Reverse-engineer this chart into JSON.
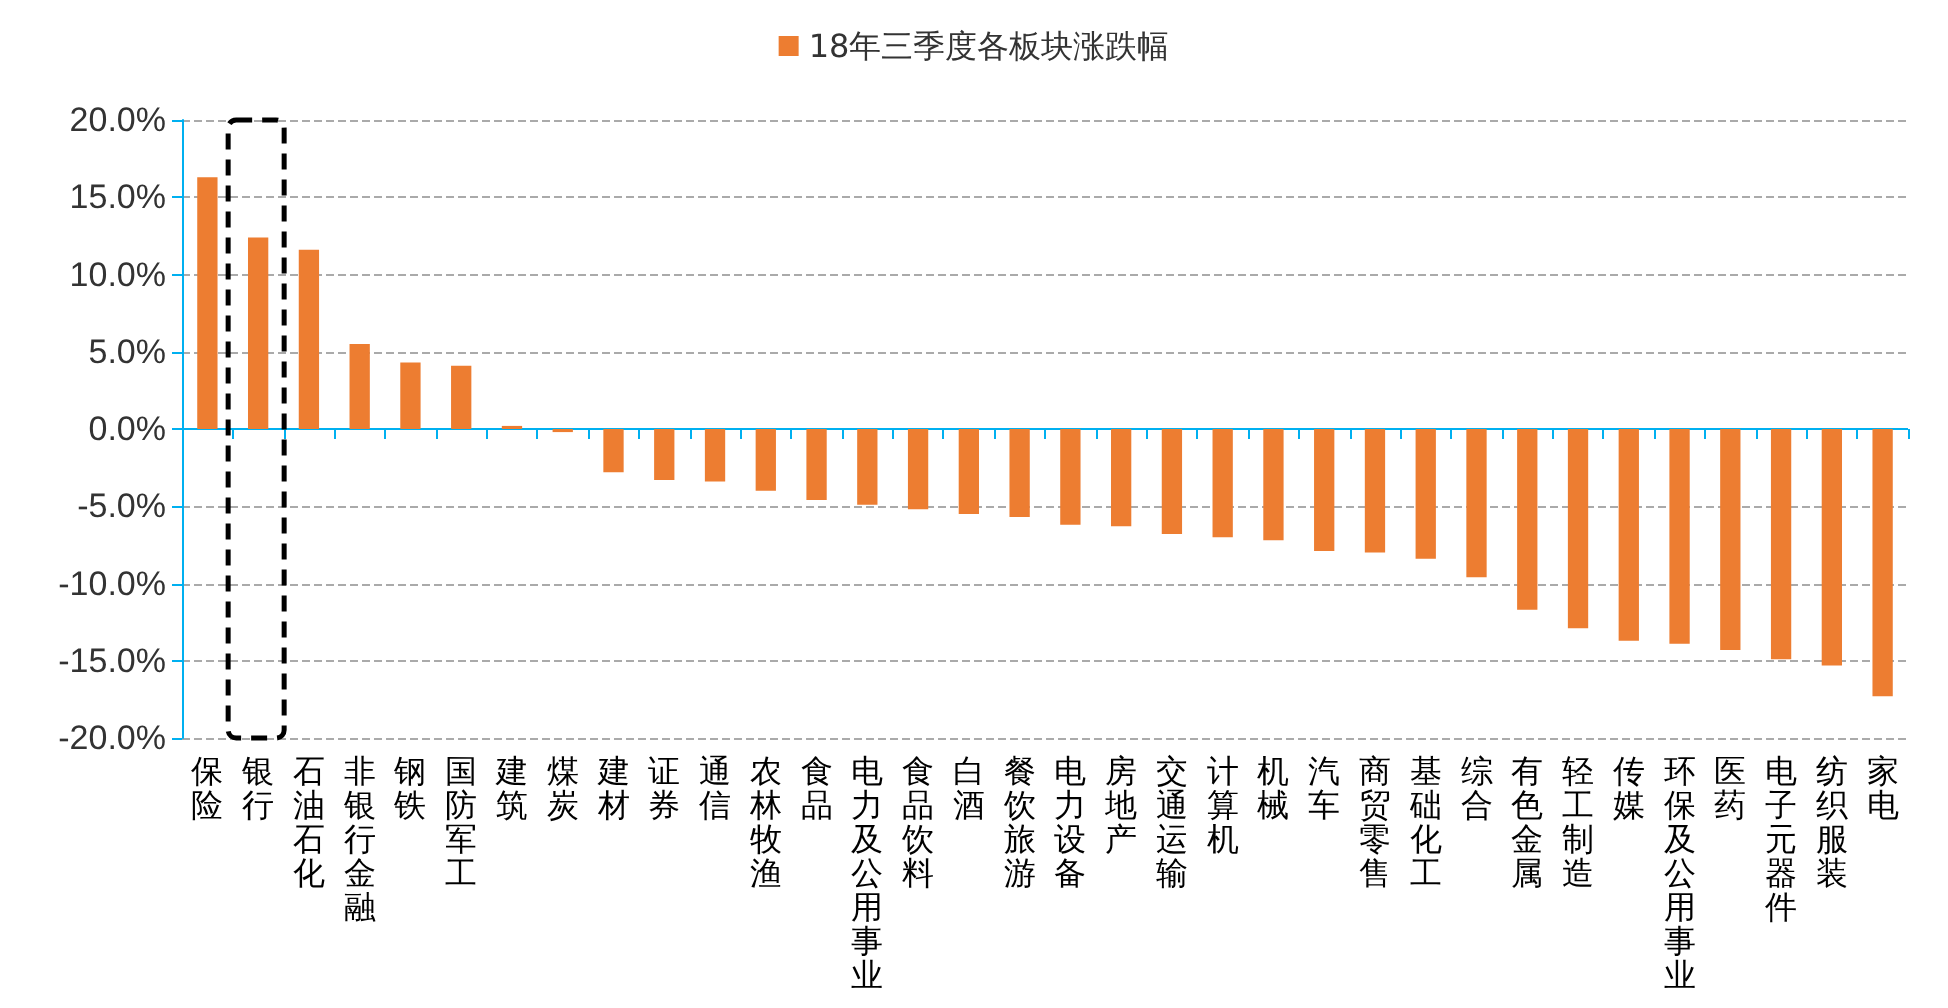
{
  "chart_data": {
    "type": "bar",
    "categories": [
      "保险",
      "银行",
      "石油石化",
      "非银行金融",
      "钢铁",
      "国防军工",
      "建筑",
      "煤炭",
      "建材",
      "证券",
      "通信",
      "农林牧渔",
      "食品",
      "电力及公用事业",
      "食品饮料",
      "白酒",
      "餐饮旅游",
      "电力设备",
      "房地产",
      "交通运输",
      "计算机",
      "机械",
      "汽车",
      "商贸零售",
      "基础化工",
      "综合",
      "有色金属",
      "轻工制造",
      "传媒",
      "环保及公用事业",
      "医药",
      "电子元器件",
      "纺织服装",
      "家电"
    ],
    "series": [
      {
        "name": "18年三季度各板块涨跌幅",
        "color": "#ed7d31",
        "values": [
          16.3,
          12.4,
          11.6,
          5.5,
          4.3,
          4.1,
          0.2,
          -0.2,
          -2.8,
          -3.3,
          -3.4,
          -4.0,
          -4.6,
          -4.9,
          -5.2,
          -5.5,
          -5.7,
          -6.2,
          -6.3,
          -6.8,
          -7.0,
          -7.2,
          -7.9,
          -8.0,
          -8.4,
          -9.6,
          -11.7,
          -12.9,
          -13.7,
          -13.9,
          -14.3,
          -14.9,
          -15.3,
          -17.3
        ]
      }
    ],
    "ylim": [
      -20,
      20
    ],
    "yticks": [
      {
        "value": -20,
        "label": "-20.0%"
      },
      {
        "value": -15,
        "label": "-15.0%"
      },
      {
        "value": -10,
        "label": "-10.0%"
      },
      {
        "value": -5,
        "label": "-5.0%"
      },
      {
        "value": 0,
        "label": "0.0%"
      },
      {
        "value": 5,
        "label": "5.0%"
      },
      {
        "value": 10,
        "label": "10.0%"
      },
      {
        "value": 15,
        "label": "15.0%"
      },
      {
        "value": 20,
        "label": "20.0%"
      }
    ],
    "ref_lines": [
      {
        "axis": "y",
        "value": 0,
        "color": "#00b0f0",
        "line_style": "solid"
      }
    ],
    "grid": "y",
    "legend": "top"
  }
}
